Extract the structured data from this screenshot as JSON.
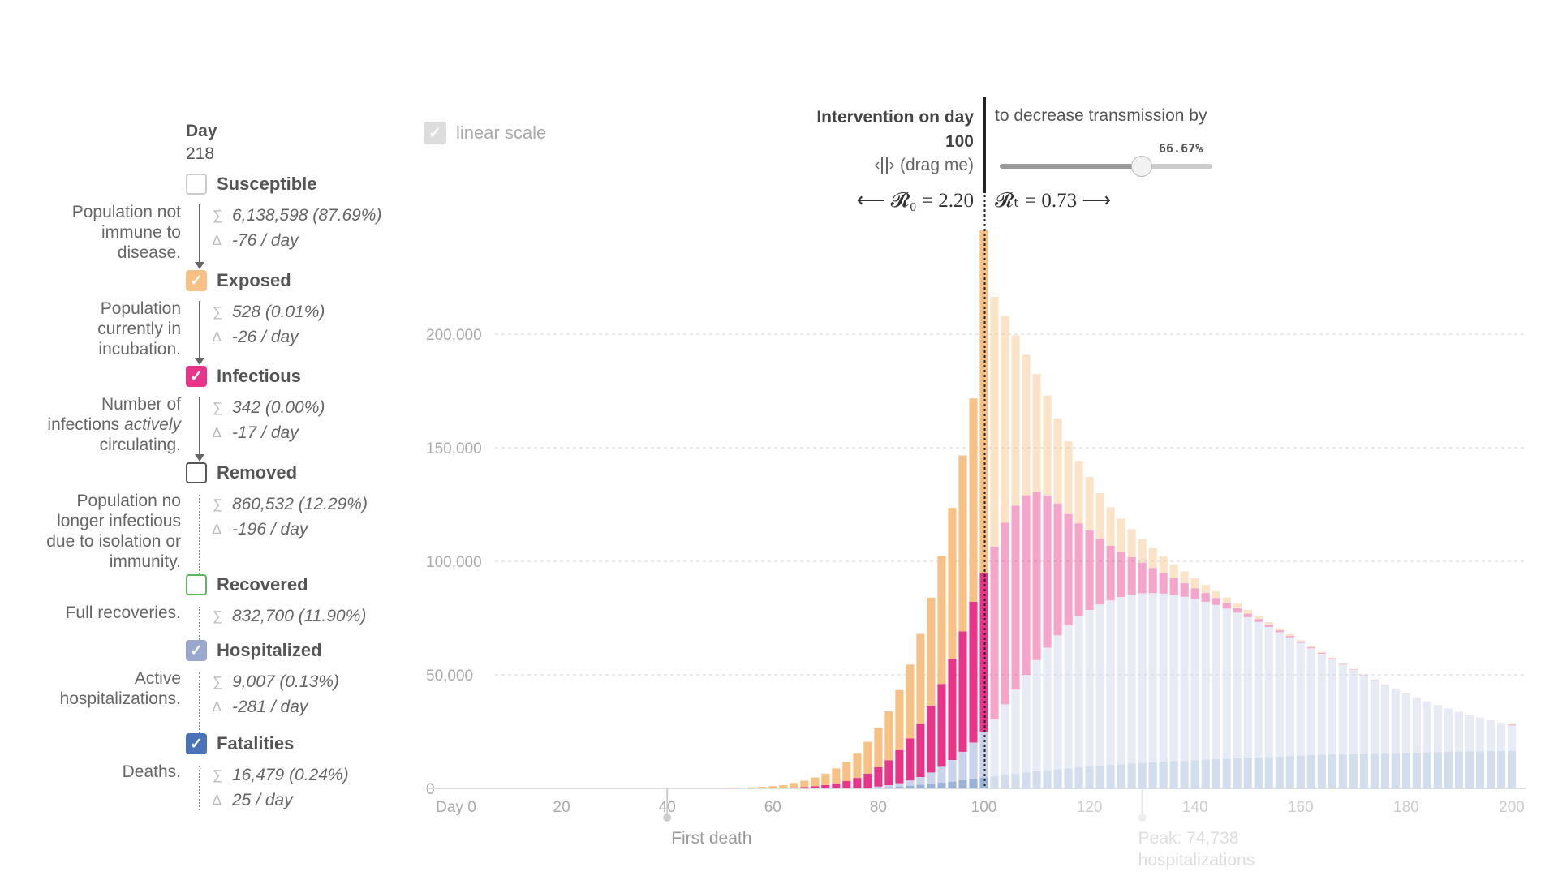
{
  "day_label": "Day",
  "day_value": "218",
  "compartments": [
    {
      "name": "Susceptible",
      "checked": false,
      "color": "#cccccc",
      "desc_lines": [
        "Population not",
        "immune to",
        "disease."
      ],
      "sigma": "6,138,598 (87.69%)",
      "delta": "-76 / day",
      "connector": "arrow"
    },
    {
      "name": "Exposed",
      "checked": true,
      "color": "#f7c084",
      "desc_lines": [
        "Population",
        "currently in",
        "incubation."
      ],
      "sigma": "528 (0.01%)",
      "delta": "-26 / day",
      "connector": "arrow"
    },
    {
      "name": "Infectious",
      "checked": true,
      "color": "#e8358a",
      "desc_lines": [
        "Number of",
        "infections actively",
        "circulating."
      ],
      "sigma": "342 (0.00%)",
      "delta": "-17 / day",
      "connector": "arrow"
    },
    {
      "name": "Removed",
      "checked": false,
      "color": "#555555",
      "desc_lines": [
        "Population no",
        "longer infectious",
        "due to isolation or",
        "immunity."
      ],
      "sigma": "860,532 (12.29%)",
      "delta": "-196 / day",
      "connector": "dots"
    },
    {
      "name": "Recovered",
      "checked": false,
      "color": "#5cb85c",
      "desc_lines": [
        "Full recoveries."
      ],
      "sigma": "832,700 (11.90%)",
      "delta": "",
      "connector": "dots"
    },
    {
      "name": "Hospitalized",
      "checked": true,
      "color": "#9aa8d0",
      "desc_lines": [
        "Active",
        "hospitalizations."
      ],
      "sigma": "9,007 (0.13%)",
      "delta": "-281 / day",
      "connector": "dots"
    },
    {
      "name": "Fatalities",
      "checked": true,
      "color": "#4a72b8",
      "desc_lines": [
        "Deaths."
      ],
      "sigma": "16,479 (0.24%)",
      "delta": "25 / day",
      "connector": "dots"
    }
  ],
  "controls": {
    "linear_scale_label": "linear scale",
    "intervention_title": "Intervention on day",
    "intervention_day": "100",
    "drag_label": "(drag me)",
    "decrease_label": "to decrease transmission by",
    "slider_value_label": "66.67%",
    "slider_fraction": 0.6667,
    "r0_text": "⟵ 𝓡₀ = 2.20",
    "rt_text": "𝓡ₜ = 0.73 ⟶"
  },
  "annotations": {
    "first_death": "First death",
    "peak": "Peak: 74,738 hospitalizations"
  },
  "icons": {
    "check": "check-icon",
    "drag": "drag-handle-icon",
    "sigma": "sigma-icon",
    "delta": "delta-icon"
  },
  "chart_data": {
    "type": "bar",
    "stacked": true,
    "x_tick_labels": [
      "Day 0",
      "20",
      "40",
      "60",
      "80",
      "100",
      "120",
      "140",
      "160",
      "180",
      "200"
    ],
    "x_ticks": [
      0,
      20,
      40,
      60,
      80,
      100,
      120,
      140,
      160,
      180,
      200
    ],
    "xlim": [
      0,
      200
    ],
    "y_ticks": [
      0,
      50000,
      100000,
      150000,
      200000
    ],
    "y_tick_labels": [
      "0",
      "50,000",
      "100,000",
      "150,000",
      "200,000"
    ],
    "ylim": [
      0,
      250000
    ],
    "grid": true,
    "intervention_day": 100,
    "first_death_day": 40,
    "peak_day": 130,
    "x": [
      40,
      42,
      44,
      46,
      48,
      50,
      52,
      54,
      56,
      58,
      60,
      62,
      64,
      66,
      68,
      70,
      72,
      74,
      76,
      78,
      80,
      82,
      84,
      86,
      88,
      90,
      92,
      94,
      96,
      98,
      100,
      102,
      104,
      106,
      108,
      110,
      112,
      114,
      116,
      118,
      120,
      122,
      124,
      126,
      128,
      130,
      132,
      134,
      136,
      138,
      140,
      142,
      144,
      146,
      148,
      150,
      152,
      154,
      156,
      158,
      160,
      162,
      164,
      166,
      168,
      170,
      172,
      174,
      176,
      178,
      180,
      182,
      184,
      186,
      188,
      190,
      192,
      194,
      196,
      198,
      200
    ],
    "series": [
      {
        "name": "Fatalities",
        "color": "#9cb3d9",
        "values": [
          0,
          0,
          0,
          0,
          0,
          0,
          0,
          0,
          0,
          0,
          0,
          0,
          0,
          0,
          0,
          0,
          0,
          0,
          0,
          0,
          300,
          500,
          800,
          1200,
          1600,
          2000,
          2500,
          3000,
          3600,
          4200,
          4800,
          5400,
          6000,
          6500,
          7000,
          7500,
          8000,
          8400,
          8800,
          9200,
          9600,
          10000,
          10300,
          10600,
          10900,
          11200,
          11500,
          11800,
          12000,
          12200,
          12400,
          12600,
          12800,
          13000,
          13200,
          13400,
          13600,
          13800,
          14000,
          14200,
          14400,
          14600,
          14800,
          15000,
          15100,
          15200,
          15300,
          15400,
          15500,
          15600,
          15700,
          15800,
          15900,
          16000,
          16100,
          16200,
          16300,
          16350,
          16400,
          16450,
          16479
        ]
      },
      {
        "name": "Hospitalized",
        "color": "#c9d3ea",
        "values": [
          0,
          0,
          0,
          0,
          0,
          0,
          0,
          0,
          0,
          0,
          0,
          0,
          0,
          0,
          0,
          0,
          0,
          0,
          0,
          0,
          500,
          900,
          1500,
          2300,
          3400,
          5000,
          7000,
          9500,
          12500,
          16000,
          20000,
          25000,
          31000,
          37000,
          43000,
          49000,
          54000,
          59000,
          63000,
          66500,
          69000,
          71000,
          72500,
          73700,
          74400,
          74700,
          74500,
          74000,
          73200,
          72200,
          71000,
          69600,
          68000,
          66200,
          64200,
          62000,
          59700,
          57300,
          54800,
          52300,
          49700,
          47100,
          44500,
          42000,
          39500,
          37000,
          34600,
          32300,
          30100,
          28000,
          26000,
          24100,
          22300,
          20600,
          19000,
          17500,
          16100,
          14800,
          13600,
          12400,
          11300
        ]
      },
      {
        "name": "Infectious",
        "color": "#e8358a",
        "values": [
          0,
          0,
          0,
          0,
          0,
          0,
          0,
          0,
          0,
          0,
          0,
          0,
          400,
          600,
          1000,
          1500,
          2200,
          3200,
          4600,
          6500,
          8500,
          11000,
          14500,
          18500,
          23500,
          29500,
          36500,
          44500,
          53000,
          62000,
          70000,
          76000,
          80000,
          81000,
          79000,
          74000,
          67000,
          58000,
          49000,
          41000,
          35000,
          29000,
          24000,
          20000,
          16500,
          13500,
          11000,
          9000,
          7300,
          5900,
          4700,
          3800,
          3000,
          2400,
          1900,
          1500,
          1200,
          950,
          750,
          600,
          480,
          380,
          300,
          240,
          190,
          150,
          120,
          95,
          75,
          60,
          48,
          38,
          30,
          24,
          19,
          15,
          12,
          10,
          8,
          6,
          342
        ]
      },
      {
        "name": "Exposed",
        "color": "#f7c084",
        "values": [
          0,
          0,
          0,
          0,
          0,
          0,
          200,
          300,
          500,
          700,
          1000,
          1400,
          2000,
          2800,
          3800,
          5000,
          6600,
          8500,
          11000,
          14000,
          17500,
          21500,
          26500,
          32500,
          39500,
          47500,
          56500,
          66500,
          77500,
          89500,
          151000,
          110000,
          91000,
          75000,
          62000,
          52000,
          44000,
          37500,
          32000,
          27500,
          23500,
          20000,
          17000,
          14500,
          12300,
          10400,
          8800,
          7400,
          6200,
          5200,
          4350,
          3600,
          3000,
          2500,
          2050,
          1700,
          1400,
          1150,
          950,
          780,
          640,
          520,
          430,
          350,
          285,
          230,
          190,
          155,
          125,
          100,
          82,
          66,
          54,
          44,
          36,
          29,
          24,
          19,
          16,
          13,
          528
        ]
      }
    ]
  }
}
